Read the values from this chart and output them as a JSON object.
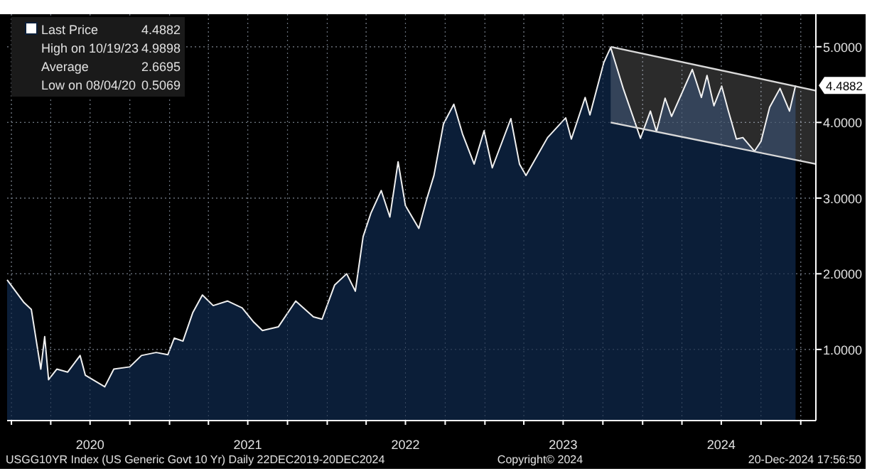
{
  "chart_data": {
    "type": "area",
    "xlim": [
      "2019-12-22",
      "2025-02-05"
    ],
    "xticks": [
      {
        "value": "2020-01-01",
        "label": null
      },
      {
        "value": "2020-04-01",
        "label": null
      },
      {
        "value": "2020-07-01",
        "label": "2020"
      },
      {
        "value": "2020-10-01",
        "label": null
      },
      {
        "value": "2021-01-01",
        "label": null
      },
      {
        "value": "2021-04-01",
        "label": null
      },
      {
        "value": "2021-07-01",
        "label": "2021"
      },
      {
        "value": "2021-10-01",
        "label": null
      },
      {
        "value": "2022-01-01",
        "label": null
      },
      {
        "value": "2022-04-01",
        "label": null
      },
      {
        "value": "2022-07-01",
        "label": "2022"
      },
      {
        "value": "2022-10-01",
        "label": null
      },
      {
        "value": "2023-01-01",
        "label": null
      },
      {
        "value": "2023-04-01",
        "label": null
      },
      {
        "value": "2023-07-01",
        "label": "2023"
      },
      {
        "value": "2023-10-01",
        "label": null
      },
      {
        "value": "2024-01-01",
        "label": null
      },
      {
        "value": "2024-04-01",
        "label": null
      },
      {
        "value": "2024-07-01",
        "label": "2024"
      },
      {
        "value": "2024-10-01",
        "label": null
      },
      {
        "value": "2025-01-01",
        "label": null
      }
    ],
    "ylim": [
      0.06,
      5.43
    ],
    "yticks": [
      {
        "value": 1,
        "label": "1.0000"
      },
      {
        "value": 2,
        "label": "2.0000"
      },
      {
        "value": 3,
        "label": "3.0000"
      },
      {
        "value": 4,
        "label": "4.0000"
      },
      {
        "value": 5,
        "label": "5.0000"
      }
    ],
    "grid": true,
    "legend": "top left",
    "series": [
      {
        "name": "Last Price",
        "color": "#0b1e38",
        "x": [
          "2019-12-22",
          "2020-01-30",
          "2020-02-16",
          "2020-03-09",
          "2020-03-18",
          "2020-03-27",
          "2020-04-15",
          "2020-05-10",
          "2020-06-08",
          "2020-06-20",
          "2020-08-04",
          "2020-08-25",
          "2020-10-01",
          "2020-10-28",
          "2020-12-01",
          "2020-12-28",
          "2021-01-12",
          "2021-02-01",
          "2021-02-24",
          "2021-03-18",
          "2021-04-12",
          "2021-05-15",
          "2021-06-18",
          "2021-07-15",
          "2021-08-04",
          "2021-09-10",
          "2021-10-20",
          "2021-11-30",
          "2021-12-20",
          "2022-01-18",
          "2022-02-15",
          "2022-03-07",
          "2022-03-25",
          "2022-04-12",
          "2022-05-06",
          "2022-05-26",
          "2022-06-14",
          "2022-07-01",
          "2022-08-01",
          "2022-08-20",
          "2022-09-05",
          "2022-09-27",
          "2022-10-21",
          "2022-11-10",
          "2022-12-07",
          "2022-12-30",
          "2023-01-18",
          "2023-03-02",
          "2023-03-22",
          "2023-04-06",
          "2023-05-26",
          "2023-07-07",
          "2023-07-20",
          "2023-08-21",
          "2023-09-01",
          "2023-10-03",
          "2023-10-19",
          "2023-11-01",
          "2023-11-17",
          "2023-12-27",
          "2024-01-19",
          "2024-02-02",
          "2024-02-22",
          "2024-03-08",
          "2024-04-25",
          "2024-05-16",
          "2024-05-29",
          "2024-06-14",
          "2024-07-02",
          "2024-07-17",
          "2024-08-05",
          "2024-08-20",
          "2024-09-16",
          "2024-10-01",
          "2024-10-21",
          "2024-11-14",
          "2024-12-06",
          "2024-12-20"
        ],
        "values": [
          1.92,
          1.62,
          1.53,
          0.74,
          1.17,
          0.6,
          0.74,
          0.7,
          0.92,
          0.66,
          0.5069,
          0.74,
          0.77,
          0.92,
          0.96,
          0.93,
          1.15,
          1.11,
          1.49,
          1.72,
          1.58,
          1.64,
          1.55,
          1.36,
          1.25,
          1.3,
          1.64,
          1.43,
          1.4,
          1.85,
          2.0,
          1.77,
          2.49,
          2.8,
          3.1,
          2.75,
          3.48,
          2.9,
          2.6,
          3.0,
          3.3,
          3.98,
          4.24,
          3.85,
          3.45,
          3.89,
          3.4,
          4.05,
          3.45,
          3.3,
          3.8,
          4.06,
          3.78,
          4.33,
          4.1,
          4.79,
          4.9898,
          4.75,
          4.45,
          3.79,
          4.15,
          3.88,
          4.32,
          4.08,
          4.7,
          4.33,
          4.62,
          4.22,
          4.48,
          4.16,
          3.78,
          3.8,
          3.62,
          3.75,
          4.2,
          4.45,
          4.15,
          4.4882
        ]
      },
      {
        "type": "line",
        "color": "#d9d9d9",
        "x": [
          "2023-10-19",
          "2025-02-05"
        ],
        "values": [
          5.0,
          4.42
        ]
      },
      {
        "type": "line",
        "color": "#d9d9d9",
        "x": [
          "2023-10-19",
          "2025-02-05"
        ],
        "values": [
          4.0,
          3.45
        ]
      }
    ],
    "annotations": [
      "4.4882",
      "High on 10/19/23 4.9898",
      "Average 2.6695",
      "Low on 08/04/20 0.5069",
      {
        "text": "4.4882",
        "x": "2024-12-20",
        "y": 4.4882
      },
      "USGG10YR Index (US Generic Govt 10 Yr)  Daily 22DEC2019-20DEC2024",
      "Copyright© 2024",
      "20-Dec-2024 17:56:50"
    ]
  }
}
